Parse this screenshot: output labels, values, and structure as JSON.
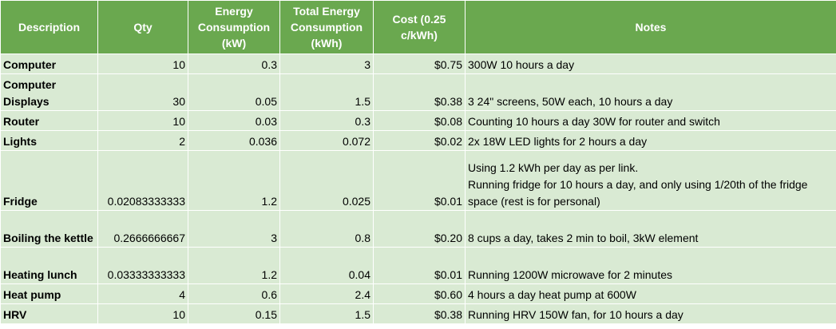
{
  "headers": {
    "description": "Description",
    "qty": "Qty",
    "energy_kw": "Energy Consumption (kW)",
    "total_kwh": "Total Energy Consumption (kWh)",
    "cost": "Cost (0.25 c/kWh)",
    "notes": "Notes"
  },
  "rows": [
    {
      "description": "Computer",
      "qty": "10",
      "energy_kw": "0.3",
      "total_kwh": "3",
      "cost": "$0.75",
      "notes": "300W 10 hours a day"
    },
    {
      "description": "Computer Displays",
      "qty": "30",
      "energy_kw": "0.05",
      "total_kwh": "1.5",
      "cost": "$0.38",
      "notes": "3 24\" screens, 50W each, 10 hours a day"
    },
    {
      "description": "Router",
      "qty": "10",
      "energy_kw": "0.03",
      "total_kwh": "0.3",
      "cost": "$0.08",
      "notes": "Counting 10 hours a day 30W for router and switch"
    },
    {
      "description": "Lights",
      "qty": "2",
      "energy_kw": "0.036",
      "total_kwh": "0.072",
      "cost": "$0.02",
      "notes": "2x 18W LED lights for 2 hours a day"
    },
    {
      "description": "Fridge",
      "qty": "0.02083333333",
      "energy_kw": "1.2",
      "total_kwh": "0.025",
      "cost": "$0.01",
      "notes": "Using 1.2 kWh per day as per link.\nRunning fridge for 10 hours a day, and only using 1/20th of the fridge space (rest is for personal)"
    },
    {
      "description": "Boiling the kettle",
      "qty": "0.2666666667",
      "energy_kw": "3",
      "total_kwh": "0.8",
      "cost": "$0.20",
      "notes": "8 cups a day, takes 2 min to boil, 3kW element"
    },
    {
      "description": "Heating lunch",
      "qty": "0.03333333333",
      "energy_kw": "1.2",
      "total_kwh": "0.04",
      "cost": "$0.01",
      "notes": "Running 1200W microwave for 2 minutes"
    },
    {
      "description": "Heat pump",
      "qty": "4",
      "energy_kw": "0.6",
      "total_kwh": "2.4",
      "cost": "$0.60",
      "notes": "4 hours a day heat pump at 600W"
    },
    {
      "description": "HRV",
      "qty": "10",
      "energy_kw": "0.15",
      "total_kwh": "1.5",
      "cost": "$0.38",
      "notes": "Running HRV 150W fan, for 10 hours a day"
    }
  ]
}
